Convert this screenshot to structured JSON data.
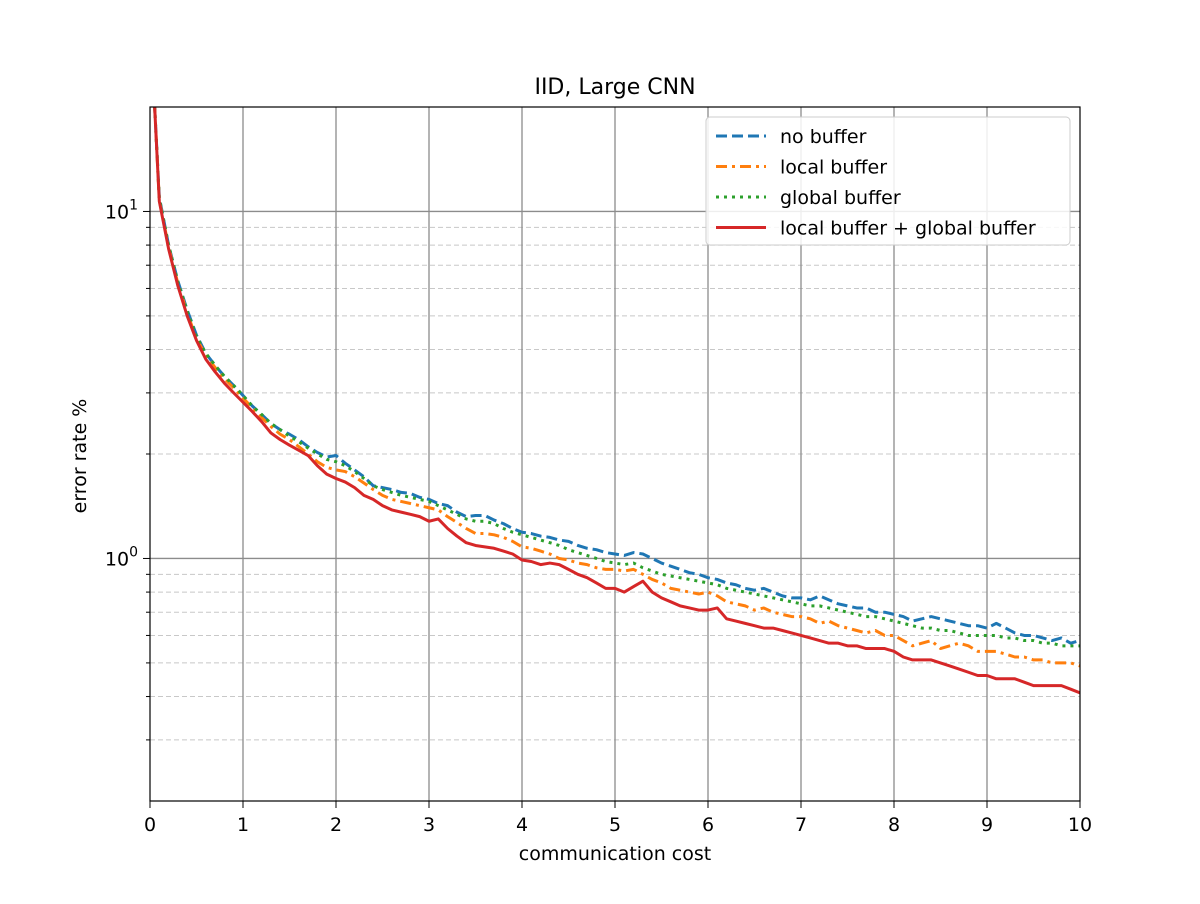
{
  "chart_data": {
    "type": "line",
    "title": "IID, Large CNN",
    "xlabel": "communication cost",
    "ylabel": "error rate %",
    "xlim": [
      0,
      10
    ],
    "ylim": [
      0.2,
      20
    ],
    "yscale": "log",
    "xticks": [
      "0",
      "1",
      "2",
      "3",
      "4",
      "5",
      "6",
      "7",
      "8",
      "9",
      "10"
    ],
    "yticks": [
      {
        "base": "10",
        "exp": "0",
        "value": 1
      },
      {
        "base": "10",
        "exp": "1",
        "value": 10
      }
    ],
    "grid": true,
    "legend_position": "top-right",
    "x": [
      0.05,
      0.1,
      0.2,
      0.3,
      0.4,
      0.5,
      0.6,
      0.7,
      0.8,
      0.9,
      1.0,
      1.1,
      1.2,
      1.3,
      1.4,
      1.5,
      1.6,
      1.7,
      1.8,
      1.9,
      2.0,
      2.1,
      2.2,
      2.3,
      2.4,
      2.5,
      2.6,
      2.7,
      2.8,
      2.9,
      3.0,
      3.1,
      3.2,
      3.3,
      3.4,
      3.5,
      3.6,
      3.7,
      3.8,
      3.9,
      4.0,
      4.1,
      4.2,
      4.3,
      4.4,
      4.5,
      4.6,
      4.7,
      4.8,
      4.9,
      5.0,
      5.1,
      5.2,
      5.3,
      5.4,
      5.5,
      5.6,
      5.7,
      5.8,
      5.9,
      6.0,
      6.1,
      6.2,
      6.3,
      6.4,
      6.5,
      6.6,
      6.7,
      6.8,
      6.9,
      7.0,
      7.1,
      7.2,
      7.3,
      7.4,
      7.5,
      7.6,
      7.7,
      7.8,
      7.9,
      8.0,
      8.1,
      8.2,
      8.3,
      8.4,
      8.5,
      8.6,
      8.7,
      8.8,
      8.9,
      9.0,
      9.1,
      9.2,
      9.3,
      9.4,
      9.5,
      9.6,
      9.7,
      9.8,
      9.9,
      10.0
    ],
    "series": [
      {
        "name": "no buffer",
        "color": "#1f77b4",
        "dash": "dashed",
        "values": [
          20.0,
          11.0,
          8.0,
          6.3,
          5.2,
          4.4,
          3.9,
          3.6,
          3.35,
          3.15,
          2.95,
          2.75,
          2.6,
          2.45,
          2.35,
          2.28,
          2.2,
          2.1,
          2.02,
          1.96,
          1.98,
          1.88,
          1.8,
          1.72,
          1.62,
          1.6,
          1.58,
          1.55,
          1.54,
          1.5,
          1.48,
          1.44,
          1.42,
          1.36,
          1.32,
          1.33,
          1.33,
          1.29,
          1.26,
          1.22,
          1.19,
          1.18,
          1.16,
          1.15,
          1.13,
          1.12,
          1.09,
          1.07,
          1.06,
          1.04,
          1.03,
          1.02,
          1.04,
          1.03,
          1.0,
          0.97,
          0.95,
          0.93,
          0.91,
          0.9,
          0.88,
          0.87,
          0.85,
          0.84,
          0.82,
          0.81,
          0.82,
          0.8,
          0.78,
          0.77,
          0.77,
          0.76,
          0.78,
          0.76,
          0.74,
          0.73,
          0.72,
          0.72,
          0.7,
          0.7,
          0.69,
          0.68,
          0.66,
          0.67,
          0.68,
          0.67,
          0.66,
          0.65,
          0.64,
          0.64,
          0.63,
          0.65,
          0.63,
          0.61,
          0.6,
          0.6,
          0.59,
          0.58,
          0.59,
          0.57,
          0.58
        ]
      },
      {
        "name": "local buffer",
        "color": "#ff7f0e",
        "dash": "dashdot",
        "values": [
          20.0,
          10.8,
          7.9,
          6.2,
          5.1,
          4.3,
          3.85,
          3.55,
          3.3,
          3.1,
          2.9,
          2.72,
          2.55,
          2.4,
          2.28,
          2.2,
          2.1,
          2.0,
          1.9,
          1.83,
          1.8,
          1.78,
          1.72,
          1.65,
          1.58,
          1.52,
          1.48,
          1.46,
          1.44,
          1.42,
          1.4,
          1.38,
          1.32,
          1.27,
          1.22,
          1.18,
          1.18,
          1.17,
          1.15,
          1.12,
          1.08,
          1.07,
          1.05,
          1.03,
          1.0,
          0.99,
          0.97,
          0.96,
          0.94,
          0.93,
          0.93,
          0.92,
          0.93,
          0.9,
          0.87,
          0.85,
          0.82,
          0.81,
          0.8,
          0.79,
          0.8,
          0.78,
          0.75,
          0.74,
          0.73,
          0.71,
          0.72,
          0.7,
          0.69,
          0.68,
          0.68,
          0.67,
          0.65,
          0.66,
          0.64,
          0.63,
          0.62,
          0.61,
          0.62,
          0.6,
          0.6,
          0.58,
          0.56,
          0.57,
          0.58,
          0.55,
          0.56,
          0.57,
          0.56,
          0.54,
          0.54,
          0.54,
          0.53,
          0.52,
          0.52,
          0.51,
          0.51,
          0.5,
          0.5,
          0.5,
          0.49
        ]
      },
      {
        "name": "global buffer",
        "color": "#2ca02c",
        "dash": "dotted",
        "values": [
          20.0,
          10.9,
          8.0,
          6.25,
          5.15,
          4.35,
          3.9,
          3.6,
          3.35,
          3.15,
          2.95,
          2.75,
          2.6,
          2.45,
          2.35,
          2.25,
          2.17,
          2.08,
          2.0,
          1.93,
          1.9,
          1.85,
          1.78,
          1.7,
          1.62,
          1.58,
          1.55,
          1.52,
          1.5,
          1.48,
          1.46,
          1.42,
          1.38,
          1.34,
          1.3,
          1.28,
          1.28,
          1.26,
          1.22,
          1.19,
          1.17,
          1.15,
          1.13,
          1.11,
          1.09,
          1.06,
          1.04,
          1.02,
          1.0,
          0.98,
          0.97,
          0.96,
          0.97,
          0.94,
          0.92,
          0.9,
          0.89,
          0.88,
          0.87,
          0.86,
          0.85,
          0.84,
          0.82,
          0.81,
          0.8,
          0.79,
          0.78,
          0.77,
          0.76,
          0.75,
          0.74,
          0.73,
          0.73,
          0.72,
          0.71,
          0.7,
          0.69,
          0.68,
          0.68,
          0.67,
          0.66,
          0.65,
          0.64,
          0.63,
          0.63,
          0.62,
          0.62,
          0.61,
          0.6,
          0.6,
          0.6,
          0.6,
          0.59,
          0.59,
          0.58,
          0.58,
          0.57,
          0.57,
          0.56,
          0.56,
          0.56
        ]
      },
      {
        "name": "local buffer + global buffer",
        "color": "#d62728",
        "dash": "solid",
        "values": [
          20.0,
          10.7,
          7.8,
          6.1,
          5.0,
          4.25,
          3.75,
          3.45,
          3.2,
          3.0,
          2.82,
          2.65,
          2.48,
          2.3,
          2.2,
          2.12,
          2.05,
          1.98,
          1.85,
          1.75,
          1.7,
          1.66,
          1.6,
          1.52,
          1.48,
          1.42,
          1.38,
          1.36,
          1.34,
          1.32,
          1.28,
          1.3,
          1.22,
          1.16,
          1.11,
          1.09,
          1.08,
          1.07,
          1.05,
          1.03,
          0.99,
          0.98,
          0.96,
          0.97,
          0.96,
          0.93,
          0.9,
          0.88,
          0.85,
          0.82,
          0.82,
          0.8,
          0.83,
          0.86,
          0.8,
          0.77,
          0.75,
          0.73,
          0.72,
          0.71,
          0.71,
          0.72,
          0.67,
          0.66,
          0.65,
          0.64,
          0.63,
          0.63,
          0.62,
          0.61,
          0.6,
          0.59,
          0.58,
          0.57,
          0.57,
          0.56,
          0.56,
          0.55,
          0.55,
          0.55,
          0.54,
          0.52,
          0.51,
          0.51,
          0.51,
          0.5,
          0.49,
          0.48,
          0.47,
          0.46,
          0.46,
          0.45,
          0.45,
          0.45,
          0.44,
          0.43,
          0.43,
          0.43,
          0.43,
          0.42,
          0.41
        ]
      }
    ]
  }
}
